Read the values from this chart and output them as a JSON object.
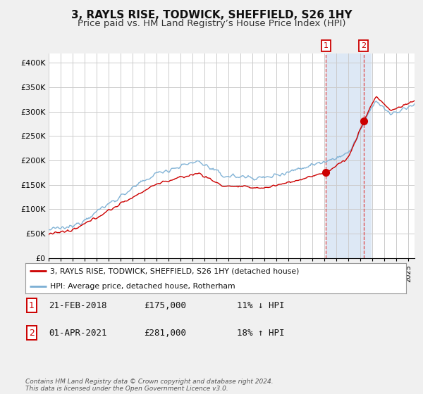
{
  "title": "3, RAYLS RISE, TODWICK, SHEFFIELD, S26 1HY",
  "subtitle": "Price paid vs. HM Land Registry’s House Price Index (HPI)",
  "title_fontsize": 11,
  "subtitle_fontsize": 9.5,
  "ylim": [
    0,
    420000
  ],
  "yticks": [
    0,
    50000,
    100000,
    150000,
    200000,
    250000,
    300000,
    350000,
    400000
  ],
  "ytick_labels": [
    "£0",
    "£50K",
    "£100K",
    "£150K",
    "£200K",
    "£250K",
    "£300K",
    "£350K",
    "£400K"
  ],
  "bg_color": "#f0f0f0",
  "plot_bg_color": "#ffffff",
  "grid_color": "#cccccc",
  "hpi_color": "#7bafd4",
  "price_color": "#cc0000",
  "sale1_year": 2018.12,
  "sale1_price": 175000,
  "sale2_year": 2021.25,
  "sale2_price": 281000,
  "legend_label_price": "3, RAYLS RISE, TODWICK, SHEFFIELD, S26 1HY (detached house)",
  "legend_label_hpi": "HPI: Average price, detached house, Rotherham",
  "footer": "Contains HM Land Registry data © Crown copyright and database right 2024.\nThis data is licensed under the Open Government Licence v3.0.",
  "highlight_color": "#dde8f5",
  "vline_color": "#dd4444",
  "xmin": 1995,
  "xmax": 2025.5
}
